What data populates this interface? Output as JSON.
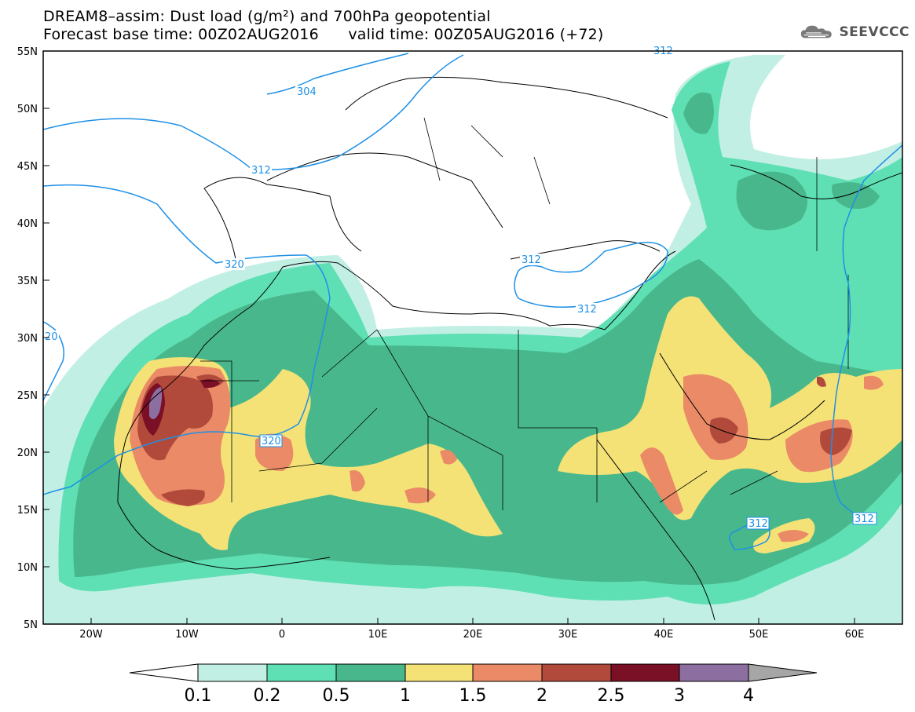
{
  "title_line1": "DREAM8–assim: Dust load (g/m²) and 700hPa geopotential",
  "title_line2": "Forecast base time: 00Z02AUG2016      valid time: 00Z05AUG2016 (+72)",
  "logo_text": "SEEVCCC",
  "logo_icon": "cloud-icon",
  "lat_labels": [
    "55N",
    "50N",
    "45N",
    "40N",
    "35N",
    "30N",
    "25N",
    "20N",
    "15N",
    "10N",
    "5N"
  ],
  "lon_labels": [
    "20W",
    "10W",
    "0",
    "10E",
    "20E",
    "30E",
    "40E",
    "50E",
    "60E"
  ],
  "colorbar": {
    "labels": [
      "0.1",
      "0.2",
      "0.5",
      "1",
      "1.5",
      "2",
      "2.5",
      "3",
      "4"
    ],
    "colors": [
      "#ffffff",
      "#c2efe4",
      "#5ee0b4",
      "#48b88c",
      "#f5e277",
      "#ea8a66",
      "#b24a3c",
      "#7a1026",
      "#8c6ea0",
      "#a6a6a6"
    ]
  },
  "contour_labels": [
    "304",
    "312",
    "320",
    "312",
    "312",
    "320",
    "312",
    "312",
    "312",
    "20"
  ],
  "contour_color": "#1e90e6"
}
